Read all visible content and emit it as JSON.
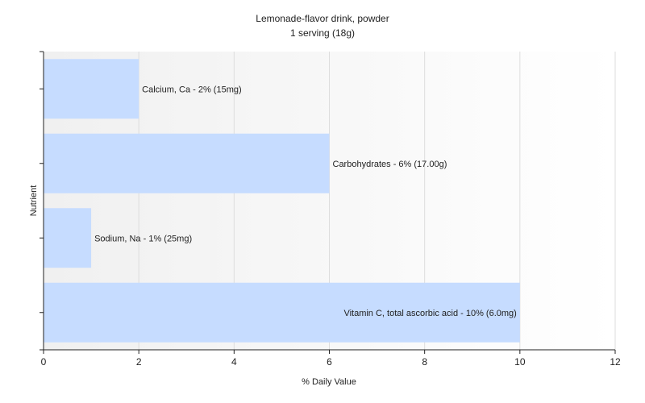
{
  "chart_data": {
    "type": "bar",
    "orientation": "horizontal",
    "title": "Lemonade-flavor drink, powder",
    "subtitle": "1 serving (18g)",
    "xlabel": "% Daily Value",
    "ylabel": "Nutrient",
    "xlim": [
      0,
      12
    ],
    "xticks": [
      0,
      2,
      4,
      6,
      8,
      10,
      12
    ],
    "grid": true,
    "bar_color": "#c6dcff",
    "bars": [
      {
        "value": 2,
        "label": "Calcium, Ca - 2% (15mg)"
      },
      {
        "value": 6,
        "label": "Carbohydrates - 6% (17.00g)"
      },
      {
        "value": 1,
        "label": "Sodium, Na - 1% (25mg)"
      },
      {
        "value": 10,
        "label": "Vitamin C, total ascorbic acid - 10% (6.0mg)"
      }
    ]
  }
}
